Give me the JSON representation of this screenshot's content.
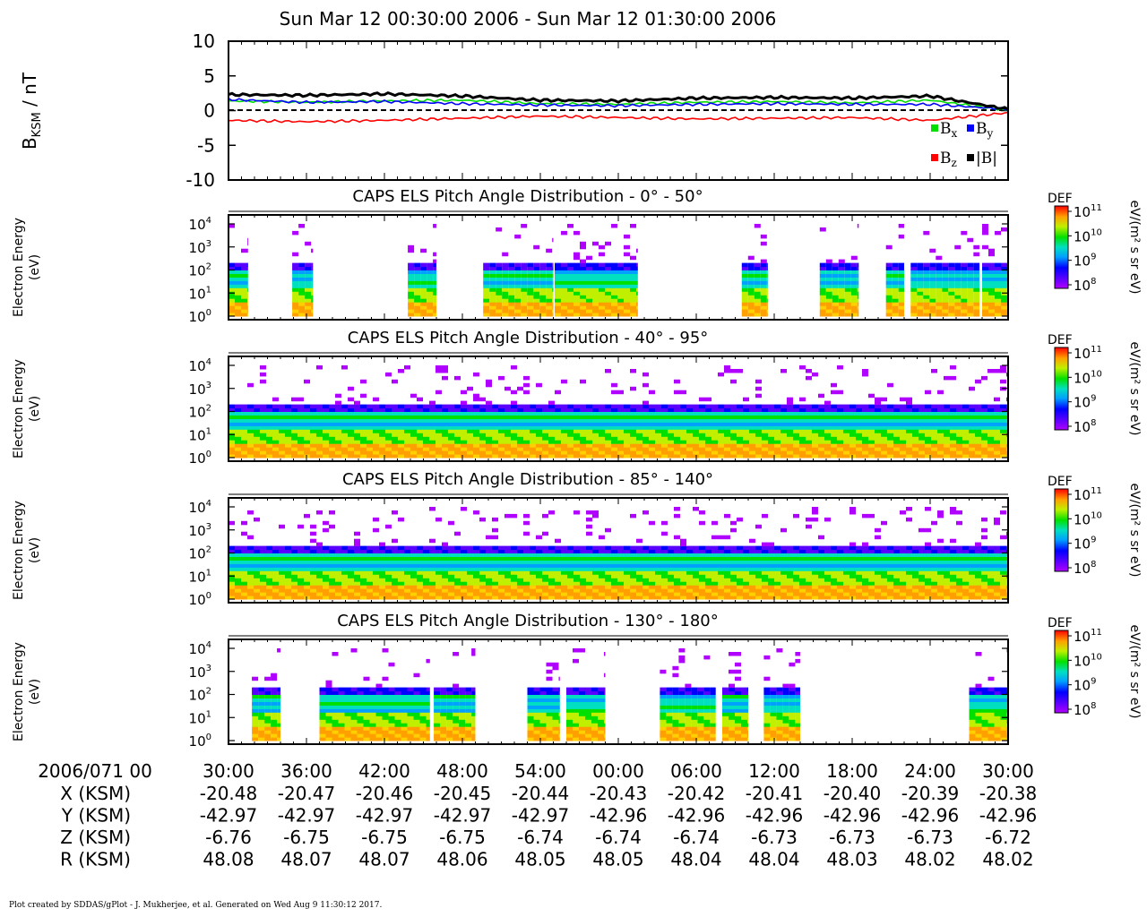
{
  "title": "Sun Mar 12 00:30:00 2006 - Sun Mar 12 01:30:00 2006",
  "footer": "Plot created by SDDAS/gPlot - J. Mukherjee, et al.  Generated on Wed Aug 9 11:30:12 2017.",
  "chart_data": [
    {
      "type": "line",
      "ylabel_main": "B",
      "ylabel_sub": "KSM",
      "ylabel_unit": " / nT",
      "ylim": [
        -10,
        10
      ],
      "yticks": [
        "10",
        "5",
        "0",
        "-5",
        "-10"
      ],
      "x": [
        "00:30",
        "00:36",
        "00:42",
        "00:48",
        "00:54",
        "01:00",
        "01:06",
        "01:12",
        "01:18",
        "01:24",
        "01:30"
      ],
      "series": [
        {
          "name": "x",
          "color": "#00dd00",
          "values": [
            1.4,
            1.2,
            1.4,
            1.5,
            1.0,
            0.9,
            1.2,
            1.3,
            1.1,
            1.5,
            0.0
          ]
        },
        {
          "name": "y",
          "color": "#0000ff",
          "values": [
            1.6,
            1.2,
            1.3,
            1.0,
            0.8,
            0.7,
            0.9,
            1.0,
            0.9,
            0.9,
            0.2
          ]
        },
        {
          "name": "z",
          "color": "#ff0000",
          "values": [
            -1.4,
            -1.6,
            -1.4,
            -1.1,
            -0.8,
            -1.0,
            -1.2,
            -1.1,
            -1.0,
            -1.4,
            -0.3
          ]
        },
        {
          "name": "|B|",
          "color": "#000000",
          "values": [
            2.3,
            2.2,
            2.4,
            2.1,
            1.5,
            1.4,
            1.8,
            1.9,
            1.8,
            2.1,
            0.2
          ]
        }
      ],
      "legend": {
        "bx": {
          "main": "B",
          "sub": "x"
        },
        "by": {
          "main": "B",
          "sub": "y"
        },
        "bz": {
          "main": "B",
          "sub": "z"
        },
        "bmag": "|B|"
      },
      "zero_line": "dashed"
    },
    {
      "type": "heatmap",
      "title": "CAPS ELS Pitch Angle Distribution - 0° - 50°",
      "ylabel": [
        "Electron Energy",
        "(eV)"
      ],
      "yscale": "log",
      "ylim": [
        1,
        10000
      ],
      "colorbar": {
        "label": "DEF",
        "unit": "eV/(m² s sr eV)",
        "ticks": [
          "10",
          "10",
          "10",
          "10"
        ],
        "exponents": [
          "11",
          "10",
          "9",
          "8"
        ]
      },
      "coverage_minutes": [
        [
          0.0,
          1.5
        ],
        [
          4.9,
          6.5
        ],
        [
          13.8,
          16.0
        ],
        [
          19.6,
          25.0
        ],
        [
          25.1,
          31.5
        ],
        [
          39.5,
          41.5
        ],
        [
          45.5,
          48.5
        ],
        [
          50.6,
          52.0
        ],
        [
          52.5,
          57.8
        ],
        [
          58.0,
          60.0
        ]
      ]
    },
    {
      "type": "heatmap",
      "title": "CAPS ELS Pitch Angle Distribution - 40° - 95°",
      "ylabel": [
        "Electron Energy",
        "(eV)"
      ],
      "yscale": "log",
      "ylim": [
        1,
        10000
      ],
      "colorbar": {
        "label": "DEF",
        "unit": "eV/(m² s sr eV)",
        "ticks": [
          "10",
          "10",
          "10",
          "10"
        ],
        "exponents": [
          "11",
          "10",
          "9",
          "8"
        ]
      },
      "coverage_minutes": [
        [
          0.0,
          60.0
        ]
      ]
    },
    {
      "type": "heatmap",
      "title": "CAPS ELS Pitch Angle Distribution - 85° - 140°",
      "ylabel": [
        "Electron Energy",
        "(eV)"
      ],
      "yscale": "log",
      "ylim": [
        1,
        10000
      ],
      "colorbar": {
        "label": "DEF",
        "unit": "eV/(m² s sr eV)",
        "ticks": [
          "10",
          "10",
          "10",
          "10"
        ],
        "exponents": [
          "11",
          "10",
          "9",
          "8"
        ]
      },
      "coverage_minutes": [
        [
          0.0,
          60.0
        ]
      ]
    },
    {
      "type": "heatmap",
      "title": "CAPS ELS Pitch Angle Distribution - 130° - 180°",
      "ylabel": [
        "Electron Energy",
        "(eV)"
      ],
      "yscale": "log",
      "ylim": [
        1,
        10000
      ],
      "colorbar": {
        "label": "DEF",
        "unit": "eV/(m² s sr eV)",
        "ticks": [
          "10",
          "10",
          "10",
          "10"
        ],
        "exponents": [
          "11",
          "10",
          "9",
          "8"
        ]
      },
      "coverage_minutes": [
        [
          1.8,
          4.0
        ],
        [
          7.0,
          15.5
        ],
        [
          15.8,
          19.0
        ],
        [
          23.0,
          25.5
        ],
        [
          26.0,
          29.0
        ],
        [
          33.2,
          37.5
        ],
        [
          38.0,
          40.0
        ],
        [
          41.2,
          44.0
        ],
        [
          57.0,
          60.0
        ]
      ]
    }
  ],
  "axis_table": {
    "date_label": "2006/071 00",
    "ticks": [
      "30:00",
      "36:00",
      "42:00",
      "48:00",
      "54:00",
      "00:00",
      "06:00",
      "12:00",
      "18:00",
      "24:00",
      "30:00"
    ],
    "rows": [
      {
        "label": "X (KSM)",
        "values": [
          "-20.48",
          "-20.47",
          "-20.46",
          "-20.45",
          "-20.44",
          "-20.43",
          "-20.42",
          "-20.41",
          "-20.40",
          "-20.39",
          "-20.38"
        ]
      },
      {
        "label": "Y (KSM)",
        "values": [
          "-42.97",
          "-42.97",
          "-42.97",
          "-42.97",
          "-42.97",
          "-42.96",
          "-42.96",
          "-42.96",
          "-42.96",
          "-42.96",
          "-42.96"
        ]
      },
      {
        "label": "Z (KSM)",
        "values": [
          "-6.76",
          "-6.75",
          "-6.75",
          "-6.75",
          "-6.74",
          "-6.74",
          "-6.74",
          "-6.73",
          "-6.73",
          "-6.73",
          "-6.72"
        ]
      },
      {
        "label": "R (KSM)",
        "values": [
          "48.08",
          "48.07",
          "48.07",
          "48.06",
          "48.05",
          "48.05",
          "48.04",
          "48.04",
          "48.03",
          "48.02",
          "48.02"
        ]
      }
    ]
  }
}
